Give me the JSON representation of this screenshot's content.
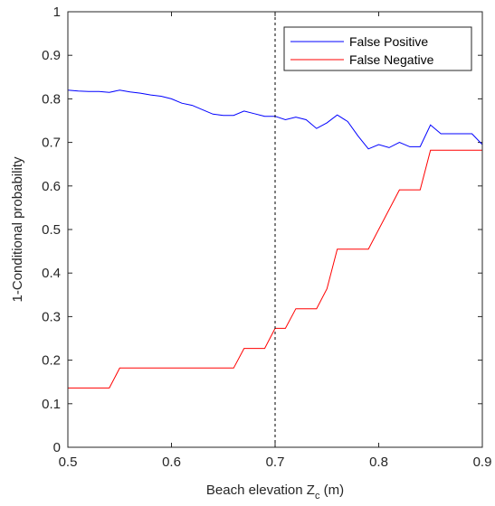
{
  "chart_data": {
    "type": "line",
    "xlabel": "Beach elevation Z",
    "xlabel_subscript": "c",
    "xlabel_unit": " (m)",
    "ylabel": "1-Conditional probability",
    "xlim": [
      0.5,
      0.9
    ],
    "ylim": [
      0,
      1
    ],
    "x_ticks": [
      "0.5",
      "0.6",
      "0.7",
      "0.8",
      "0.9"
    ],
    "y_ticks": [
      "0",
      "0.1",
      "0.2",
      "0.3",
      "0.4",
      "0.5",
      "0.6",
      "0.7",
      "0.8",
      "0.9",
      "1"
    ],
    "x_tick_values": [
      0.5,
      0.6,
      0.7,
      0.8,
      0.9
    ],
    "y_tick_values": [
      0,
      0.1,
      0.2,
      0.3,
      0.4,
      0.5,
      0.6,
      0.7,
      0.8,
      0.9,
      1
    ],
    "grid": false,
    "legend_position": "top-right",
    "reference_line": {
      "x": 0.7,
      "style": "dashed",
      "color": "#000000"
    },
    "series": [
      {
        "name": "False Positive",
        "color": "#0000ff",
        "x": [
          0.5,
          0.51,
          0.52,
          0.53,
          0.54,
          0.55,
          0.56,
          0.57,
          0.58,
          0.59,
          0.6,
          0.61,
          0.62,
          0.63,
          0.64,
          0.65,
          0.66,
          0.67,
          0.68,
          0.69,
          0.7,
          0.71,
          0.72,
          0.73,
          0.74,
          0.75,
          0.76,
          0.77,
          0.78,
          0.79,
          0.8,
          0.81,
          0.82,
          0.83,
          0.84,
          0.85,
          0.86,
          0.87,
          0.88,
          0.89,
          0.9
        ],
        "y": [
          0.82,
          0.818,
          0.817,
          0.817,
          0.815,
          0.82,
          0.816,
          0.813,
          0.809,
          0.806,
          0.8,
          0.79,
          0.785,
          0.775,
          0.765,
          0.762,
          0.762,
          0.772,
          0.766,
          0.76,
          0.76,
          0.752,
          0.758,
          0.752,
          0.732,
          0.745,
          0.763,
          0.748,
          0.715,
          0.685,
          0.695,
          0.688,
          0.7,
          0.69,
          0.69,
          0.74,
          0.72,
          0.72,
          0.72,
          0.72,
          0.695
        ]
      },
      {
        "name": "False Negative",
        "color": "#ff0000",
        "x": [
          0.5,
          0.54,
          0.55,
          0.66,
          0.67,
          0.69,
          0.7,
          0.71,
          0.72,
          0.73,
          0.74,
          0.75,
          0.76,
          0.79,
          0.82,
          0.84,
          0.85,
          0.9
        ],
        "y": [
          0.136,
          0.136,
          0.182,
          0.182,
          0.227,
          0.227,
          0.273,
          0.273,
          0.318,
          0.318,
          0.318,
          0.364,
          0.455,
          0.455,
          0.591,
          0.591,
          0.682,
          0.682
        ]
      }
    ]
  }
}
